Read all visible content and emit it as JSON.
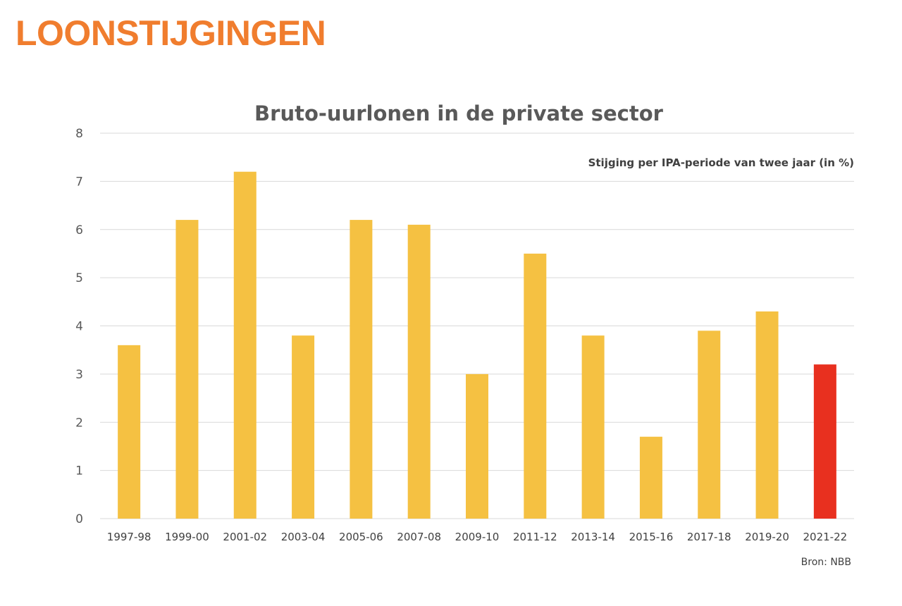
{
  "page": {
    "title": "LOONSTIJGINGEN",
    "title_color": "#f07d2e"
  },
  "chart_data": {
    "type": "bar",
    "title": "Bruto-uurlonen in de private sector",
    "subtitle": "Stijging per IPA-periode van twee jaar (in %)",
    "source": "Bron: NBB",
    "categories": [
      "1997-98",
      "1999-00",
      "2001-02",
      "2003-04",
      "2005-06",
      "2007-08",
      "2009-10",
      "2011-12",
      "2013-14",
      "2015-16",
      "2017-18",
      "2019-20",
      "2021-22"
    ],
    "values": [
      3.6,
      6.2,
      7.2,
      3.8,
      6.2,
      6.1,
      3.0,
      5.5,
      3.8,
      1.7,
      3.9,
      4.3,
      3.2
    ],
    "ylim": [
      0,
      8
    ],
    "yticks": [
      0,
      1,
      2,
      3,
      4,
      5,
      6,
      7,
      8
    ],
    "grid": true,
    "legend": "none",
    "bar_color": "#f5c142",
    "highlight_color": "#e8301f",
    "highlight_index": 12,
    "gridline_color": "#d9d9d9"
  }
}
